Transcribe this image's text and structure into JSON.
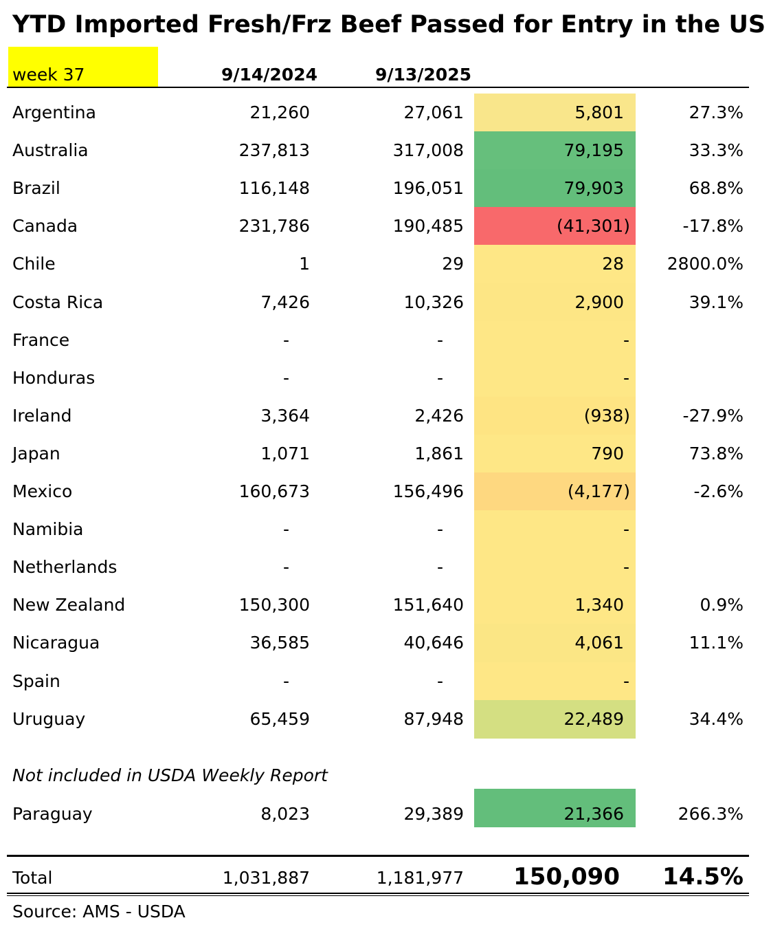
{
  "header": {
    "title": "YTD Imported Fresh/Frz Beef Passed for Entry in the US",
    "week": "week 37",
    "columns": [
      "9/14/2024",
      "9/13/2025"
    ]
  },
  "table": {
    "rows": [
      {
        "cells": [
          "Argentina",
          "21,260",
          "27,061",
          "5,801",
          "27.3%"
        ],
        "fill": "#f9e68b"
      },
      {
        "cells": [
          "Australia",
          "237,813",
          "317,008",
          "79,195",
          "33.3%"
        ],
        "fill": "#66bf7c"
      },
      {
        "cells": [
          "Brazil",
          "116,148",
          "196,051",
          "79,903",
          "68.8%"
        ],
        "fill": "#63be7b"
      },
      {
        "cells": [
          "Canada",
          "231,786",
          "190,485",
          "(41,301)",
          "-17.8%"
        ],
        "fill": "#f8696b"
      },
      {
        "cells": [
          "Chile",
          "1",
          "29",
          "28",
          "2800.0%"
        ],
        "fill": "#fee786"
      },
      {
        "cells": [
          "Costa Rica",
          "7,426",
          "10,326",
          "2,900",
          "39.1%"
        ],
        "fill": "#fde685"
      },
      {
        "cells": [
          "France",
          "-",
          "-",
          "-"
        ],
        "fill": "#fee786"
      },
      {
        "cells": [
          "Honduras",
          "-",
          "-",
          "-"
        ],
        "fill": "#fee786"
      },
      {
        "cells": [
          "Ireland",
          "3,364",
          "2,426",
          "(938)",
          "-27.9%"
        ],
        "fill": "#fee483"
      },
      {
        "cells": [
          "Japan",
          "1,071",
          "1,861",
          "790",
          "73.8%"
        ],
        "fill": "#fee786"
      },
      {
        "cells": [
          "Mexico",
          "160,673",
          "156,496",
          "(4,177)",
          "-2.6%"
        ],
        "fill": "#fed880"
      },
      {
        "cells": [
          "Namibia",
          "-",
          "-",
          "-"
        ],
        "fill": "#fee786"
      },
      {
        "cells": [
          "Netherlands",
          "-",
          "-",
          "-"
        ],
        "fill": "#fee786"
      },
      {
        "cells": [
          "New Zealand",
          "150,300",
          "151,640",
          "1,340",
          "0.9%"
        ],
        "fill": "#fee786"
      },
      {
        "cells": [
          "Nicaragua",
          "36,585",
          "40,646",
          "4,061",
          "11.1%"
        ],
        "fill": "#fbe685"
      },
      {
        "cells": [
          "Spain",
          "-",
          "-",
          "-"
        ],
        "fill": "#fee786"
      },
      {
        "cells": [
          "Uruguay",
          "65,459",
          "87,948",
          "22,489",
          "34.4%"
        ],
        "fill": "#d4df82"
      }
    ],
    "note": "Not included in USDA Weekly Report",
    "extra_rows": [
      {
        "cells": [
          "Paraguay",
          "8,023",
          "29,389",
          "21,366",
          "266.3%"
        ],
        "fill": "#63be7b"
      }
    ],
    "total": [
      "Total",
      "1,031,887",
      "1,181,977",
      "150,090",
      "14.5%"
    ]
  },
  "footer": {
    "source": "Source: AMS - USDA"
  }
}
